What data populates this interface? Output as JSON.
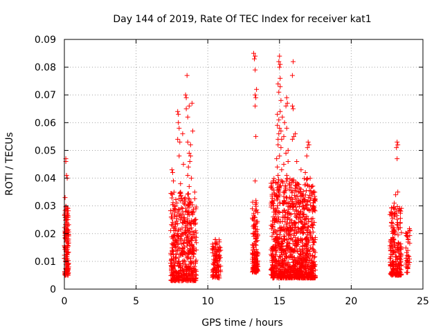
{
  "chart_data": {
    "type": "scatter",
    "title": "Day 144 of 2019, Rate Of TEC Index for receiver kat1",
    "xlabel": "GPS time / hours",
    "ylabel": "ROTI / TECUs",
    "xlim": [
      0,
      25
    ],
    "ylim": [
      0,
      0.09
    ],
    "x_ticks": [
      0,
      5,
      10,
      15,
      20,
      25
    ],
    "x_tick_labels": [
      "0",
      "5",
      "10",
      "15",
      "20",
      "25"
    ],
    "y_ticks": [
      0,
      0.01,
      0.02,
      0.03,
      0.04,
      0.05,
      0.06,
      0.07,
      0.08,
      0.09
    ],
    "y_tick_labels": [
      "0",
      "0.01",
      "0.02",
      "0.03",
      "0.04",
      "0.05",
      "0.06",
      "0.07",
      "0.08",
      "0.09"
    ],
    "grid": true,
    "marker": "+",
    "series_color": "#ff0000",
    "clusters": [
      {
        "x_range": [
          0.0,
          0.3
        ],
        "y_range": [
          0.005,
          0.03
        ],
        "count": 140,
        "bias": 1.6,
        "outliers": [
          [
            0.1,
            0.047
          ],
          [
            0.1,
            0.046
          ],
          [
            0.15,
            0.041
          ],
          [
            0.2,
            0.04
          ],
          [
            0.05,
            0.033
          ]
        ]
      },
      {
        "x_range": [
          7.4,
          9.2
        ],
        "y_range": [
          0.003,
          0.035
        ],
        "count": 520,
        "bias": 1.8,
        "outliers": [
          [
            8.55,
            0.077
          ],
          [
            8.45,
            0.07
          ],
          [
            8.5,
            0.069
          ],
          [
            8.9,
            0.067
          ],
          [
            8.7,
            0.066
          ],
          [
            8.5,
            0.065
          ],
          [
            7.9,
            0.064
          ],
          [
            7.95,
            0.063
          ],
          [
            8.6,
            0.062
          ],
          [
            7.95,
            0.06
          ],
          [
            8.0,
            0.058
          ],
          [
            8.25,
            0.056
          ],
          [
            8.95,
            0.057
          ],
          [
            7.9,
            0.054
          ],
          [
            8.05,
            0.053
          ],
          [
            8.6,
            0.053
          ],
          [
            8.8,
            0.052
          ],
          [
            8.7,
            0.049
          ],
          [
            8.8,
            0.048
          ],
          [
            8.0,
            0.048
          ],
          [
            8.75,
            0.046
          ],
          [
            8.3,
            0.045
          ],
          [
            8.65,
            0.044
          ],
          [
            7.5,
            0.043
          ],
          [
            7.55,
            0.042
          ],
          [
            8.6,
            0.041
          ],
          [
            8.85,
            0.04
          ],
          [
            7.6,
            0.039
          ],
          [
            8.1,
            0.038
          ],
          [
            8.7,
            0.037
          ]
        ]
      },
      {
        "x_range": [
          10.3,
          10.9
        ],
        "y_range": [
          0.004,
          0.018
        ],
        "count": 110,
        "bias": 1.2,
        "outliers": []
      },
      {
        "x_range": [
          13.1,
          13.5
        ],
        "y_range": [
          0.006,
          0.032
        ],
        "count": 150,
        "bias": 1.7,
        "outliers": [
          [
            13.2,
            0.085
          ],
          [
            13.3,
            0.084
          ],
          [
            13.25,
            0.083
          ],
          [
            13.3,
            0.079
          ],
          [
            13.4,
            0.072
          ],
          [
            13.3,
            0.07
          ],
          [
            13.35,
            0.069
          ],
          [
            13.3,
            0.066
          ],
          [
            13.35,
            0.055
          ],
          [
            13.3,
            0.039
          ]
        ]
      },
      {
        "x_range": [
          14.4,
          17.5
        ],
        "y_range": [
          0.004,
          0.04
        ],
        "count": 1100,
        "bias": 1.9,
        "outliers": [
          [
            15.0,
            0.084
          ],
          [
            14.95,
            0.082
          ],
          [
            15.05,
            0.081
          ],
          [
            15.95,
            0.082
          ],
          [
            15.0,
            0.08
          ],
          [
            15.9,
            0.077
          ],
          [
            15.05,
            0.076
          ],
          [
            14.9,
            0.074
          ],
          [
            15.05,
            0.073
          ],
          [
            14.95,
            0.071
          ],
          [
            15.5,
            0.069
          ],
          [
            15.1,
            0.068
          ],
          [
            15.55,
            0.067
          ],
          [
            15.45,
            0.066
          ],
          [
            15.9,
            0.066
          ],
          [
            15.95,
            0.065
          ],
          [
            15.05,
            0.064
          ],
          [
            14.85,
            0.063
          ],
          [
            15.2,
            0.062
          ],
          [
            14.95,
            0.061
          ],
          [
            15.35,
            0.06
          ],
          [
            14.85,
            0.059
          ],
          [
            15.0,
            0.058
          ],
          [
            15.5,
            0.058
          ],
          [
            15.1,
            0.057
          ],
          [
            14.95,
            0.056
          ],
          [
            16.1,
            0.056
          ],
          [
            15.3,
            0.055
          ],
          [
            14.9,
            0.054
          ],
          [
            15.15,
            0.054
          ],
          [
            15.9,
            0.054
          ],
          [
            16.0,
            0.055
          ],
          [
            17.0,
            0.053
          ],
          [
            17.05,
            0.052
          ],
          [
            16.95,
            0.051
          ],
          [
            14.9,
            0.052
          ],
          [
            15.1,
            0.051
          ],
          [
            15.6,
            0.05
          ],
          [
            15.45,
            0.049
          ],
          [
            16.9,
            0.048
          ],
          [
            15.0,
            0.048
          ],
          [
            14.8,
            0.047
          ],
          [
            15.6,
            0.046
          ],
          [
            16.2,
            0.046
          ],
          [
            15.3,
            0.045
          ],
          [
            14.85,
            0.044
          ],
          [
            16.5,
            0.043
          ],
          [
            15.15,
            0.043
          ],
          [
            16.8,
            0.042
          ],
          [
            15.5,
            0.041
          ],
          [
            14.9,
            0.041
          ]
        ]
      },
      {
        "x_range": [
          22.7,
          23.5
        ],
        "y_range": [
          0.005,
          0.03
        ],
        "count": 220,
        "bias": 1.8,
        "outliers": [
          [
            23.2,
            0.053
          ],
          [
            23.25,
            0.052
          ],
          [
            23.15,
            0.051
          ],
          [
            23.2,
            0.047
          ],
          [
            23.25,
            0.035
          ],
          [
            23.1,
            0.034
          ],
          [
            23.0,
            0.031
          ]
        ]
      },
      {
        "x_range": [
          23.8,
          24.1
        ],
        "y_range": [
          0.006,
          0.023
        ],
        "count": 40,
        "bias": 1.3,
        "outliers": []
      }
    ]
  }
}
